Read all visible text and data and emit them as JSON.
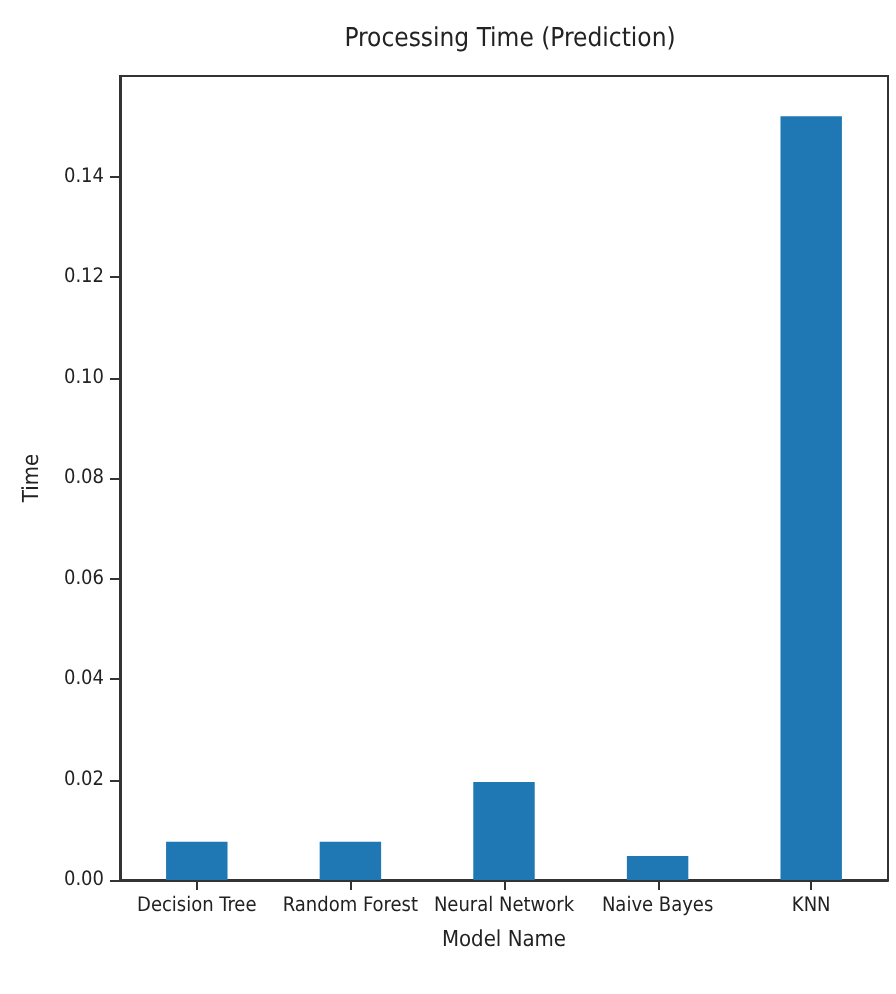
{
  "chart_data": {
    "type": "bar",
    "title": "Processing Time (Prediction)",
    "xlabel": "Model Name",
    "ylabel": "Time",
    "categories": [
      "Decision Tree",
      "Random Forest",
      "Neural Network",
      "Naive Bayes",
      "KNN"
    ],
    "values": [
      0.0076,
      0.0076,
      0.0195,
      0.0048,
      0.152
    ],
    "color": "#1f77b4",
    "ylim": [
      0,
      0.16
    ],
    "yticks": [
      {
        "value": 0,
        "label": "0.00"
      },
      0.02,
      0.04,
      0.06,
      0.08,
      {
        "value": 0.1,
        "label": "0.10"
      },
      0.12,
      0.14
    ],
    "grid": false
  }
}
